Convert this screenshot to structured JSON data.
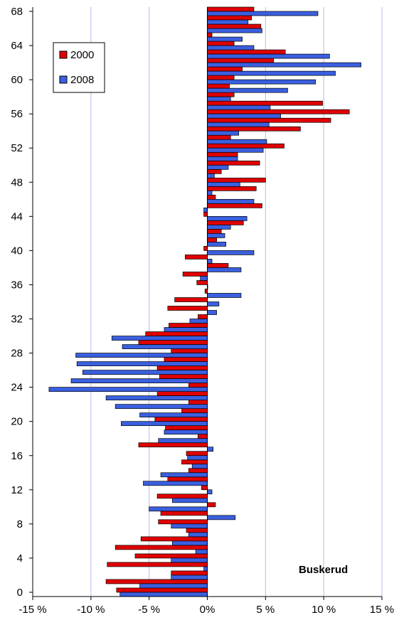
{
  "chart_data": {
    "type": "bar",
    "orientation": "horizontal",
    "annotation": "Buskerud",
    "colors": {
      "2000": "#e00000",
      "2008": "#3a5fe0"
    },
    "legend_position": "top-left",
    "grid": "vertical",
    "xlim": [
      -15,
      15
    ],
    "ylim": [
      -0.5,
      68.5
    ],
    "x_ticks": [
      -15,
      -10,
      -5,
      0,
      5,
      10,
      15
    ],
    "x_tick_labels": [
      "-15 %",
      "-10 %",
      "-5 %",
      "0%",
      "5 %",
      "10 %",
      "15 %"
    ],
    "y_ticks": [
      0,
      4,
      8,
      12,
      16,
      20,
      24,
      28,
      32,
      36,
      40,
      44,
      48,
      52,
      56,
      60,
      64,
      68
    ],
    "y_tick_labels": [
      "0",
      "4",
      "8",
      "12",
      "16",
      "20",
      "24",
      "28",
      "32",
      "36",
      "40",
      "44",
      "48",
      "52",
      "56",
      "60",
      "64",
      "68"
    ],
    "categories": [
      0,
      1,
      2,
      3,
      4,
      5,
      6,
      7,
      8,
      9,
      10,
      11,
      12,
      13,
      14,
      15,
      16,
      17,
      18,
      19,
      20,
      21,
      22,
      23,
      24,
      25,
      26,
      27,
      28,
      29,
      30,
      31,
      32,
      33,
      34,
      35,
      36,
      37,
      38,
      39,
      40,
      41,
      42,
      43,
      44,
      45,
      46,
      47,
      48,
      49,
      50,
      51,
      52,
      53,
      54,
      55,
      56,
      57,
      58,
      59,
      60,
      61,
      62,
      63,
      64,
      65,
      66,
      67,
      68
    ],
    "series": [
      {
        "name": "2000",
        "values": [
          -7.8,
          -8.7,
          -3.1,
          -8.6,
          -6.2,
          -7.9,
          -5.7,
          -1.8,
          -4.2,
          -4.0,
          0.7,
          -4.3,
          -0.5,
          -3.4,
          -1.6,
          -2.2,
          -1.8,
          -5.9,
          -0.8,
          -3.6,
          -4.5,
          -2.2,
          -1.6,
          -4.3,
          -1.6,
          -4.1,
          -4.3,
          -3.7,
          -3.1,
          -5.9,
          -5.3,
          -3.3,
          -0.8,
          -3.4,
          -2.8,
          -0.2,
          -0.9,
          -2.1,
          1.8,
          -1.9,
          -0.3,
          0.8,
          1.2,
          3.1,
          -0.3,
          4.7,
          0.7,
          4.2,
          5.0,
          1.2,
          4.5,
          2.6,
          6.6,
          2.0,
          8.0,
          10.6,
          12.2,
          9.9,
          2.3,
          1.9,
          2.3,
          3.0,
          5.7,
          6.7,
          2.3,
          0.4,
          4.6,
          3.8,
          4.0
        ]
      },
      {
        "name": "2008",
        "values": [
          -7.5,
          -5.8,
          -3.1,
          -0.3,
          -3.1,
          -1.0,
          -3.0,
          -1.6,
          -3.1,
          2.4,
          -5.0,
          -3.0,
          0.4,
          -5.5,
          -4.0,
          -1.3,
          -1.7,
          0.5,
          -4.2,
          -3.7,
          -7.4,
          -5.8,
          -7.9,
          -8.7,
          -13.6,
          -11.7,
          -10.7,
          -11.2,
          -11.3,
          -7.3,
          -8.2,
          -3.7,
          -1.5,
          0.8,
          1.0,
          2.9,
          0.0,
          -0.6,
          2.9,
          0.4,
          4.0,
          1.6,
          1.5,
          2.0,
          3.4,
          -0.3,
          4.0,
          0.4,
          2.8,
          0.6,
          1.8,
          2.6,
          4.8,
          5.1,
          2.7,
          5.3,
          6.3,
          5.4,
          2.0,
          6.9,
          9.3,
          11.0,
          13.2,
          10.5,
          4.0,
          3.0,
          4.7,
          3.5,
          9.5
        ]
      }
    ]
  }
}
